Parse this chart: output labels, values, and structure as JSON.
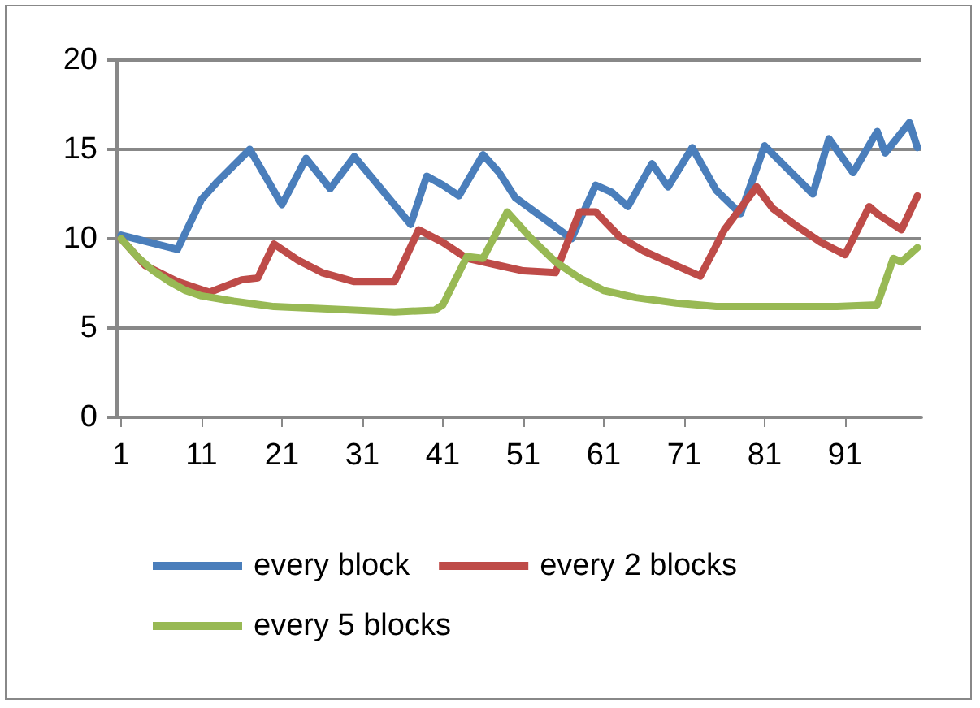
{
  "chart_data": {
    "type": "line",
    "xlim": [
      0.5,
      100.5
    ],
    "xticks": [
      1,
      11,
      21,
      31,
      41,
      51,
      61,
      71,
      81,
      91
    ],
    "ylim": [
      0,
      20
    ],
    "yticks": [
      0,
      5,
      10,
      15,
      20
    ],
    "grid": "y",
    "legend": "bottom",
    "marker": "none",
    "line_style": "solid",
    "series": [
      {
        "name": "every block",
        "color": "#4a7ebb",
        "x": [
          1,
          8,
          11,
          13,
          17,
          21,
          24,
          27,
          30,
          37,
          39,
          41,
          43,
          46,
          48,
          50,
          57,
          60,
          62,
          64,
          67,
          69,
          72,
          75,
          78,
          81,
          87,
          89,
          92,
          95,
          96,
          99,
          100
        ],
        "values": [
          10.2,
          9.4,
          12.2,
          13.2,
          15.0,
          11.9,
          14.5,
          12.8,
          14.6,
          10.8,
          13.5,
          13.0,
          12.4,
          14.7,
          13.7,
          12.3,
          10.0,
          13.0,
          12.6,
          11.8,
          14.2,
          12.9,
          15.1,
          12.7,
          11.4,
          15.2,
          12.5,
          15.6,
          13.7,
          16.0,
          14.8,
          16.5,
          15.1
        ]
      },
      {
        "name": "every 2 blocks",
        "color": "#be4b48",
        "x": [
          1,
          4,
          8,
          12,
          16,
          18,
          20,
          23,
          26,
          30,
          35,
          38,
          41,
          44,
          48,
          51,
          55,
          58,
          60,
          63,
          66,
          70,
          73,
          76,
          80,
          82,
          85,
          88,
          91,
          94,
          95,
          98,
          100
        ],
        "values": [
          10.0,
          8.5,
          7.6,
          7.0,
          7.7,
          7.8,
          9.7,
          8.8,
          8.1,
          7.6,
          7.6,
          10.5,
          9.8,
          8.9,
          8.5,
          8.2,
          8.1,
          11.5,
          11.5,
          10.1,
          9.3,
          8.5,
          7.9,
          10.5,
          12.9,
          11.7,
          10.7,
          9.8,
          9.1,
          11.8,
          11.4,
          10.5,
          12.4
        ]
      },
      {
        "name": "every 5 blocks",
        "color": "#98b954",
        "x": [
          1,
          3,
          5,
          7,
          9,
          11,
          15,
          20,
          25,
          30,
          35,
          40,
          41,
          44,
          46,
          49,
          52,
          55,
          58,
          61,
          65,
          70,
          75,
          80,
          85,
          90,
          95,
          97,
          98,
          100
        ],
        "values": [
          10.0,
          9.0,
          8.2,
          7.6,
          7.1,
          6.8,
          6.5,
          6.2,
          6.1,
          6.0,
          5.9,
          6.0,
          6.3,
          9.0,
          8.9,
          11.5,
          10.0,
          8.7,
          7.8,
          7.1,
          6.7,
          6.4,
          6.2,
          6.2,
          6.2,
          6.2,
          6.3,
          8.9,
          8.7,
          9.5
        ]
      }
    ]
  }
}
